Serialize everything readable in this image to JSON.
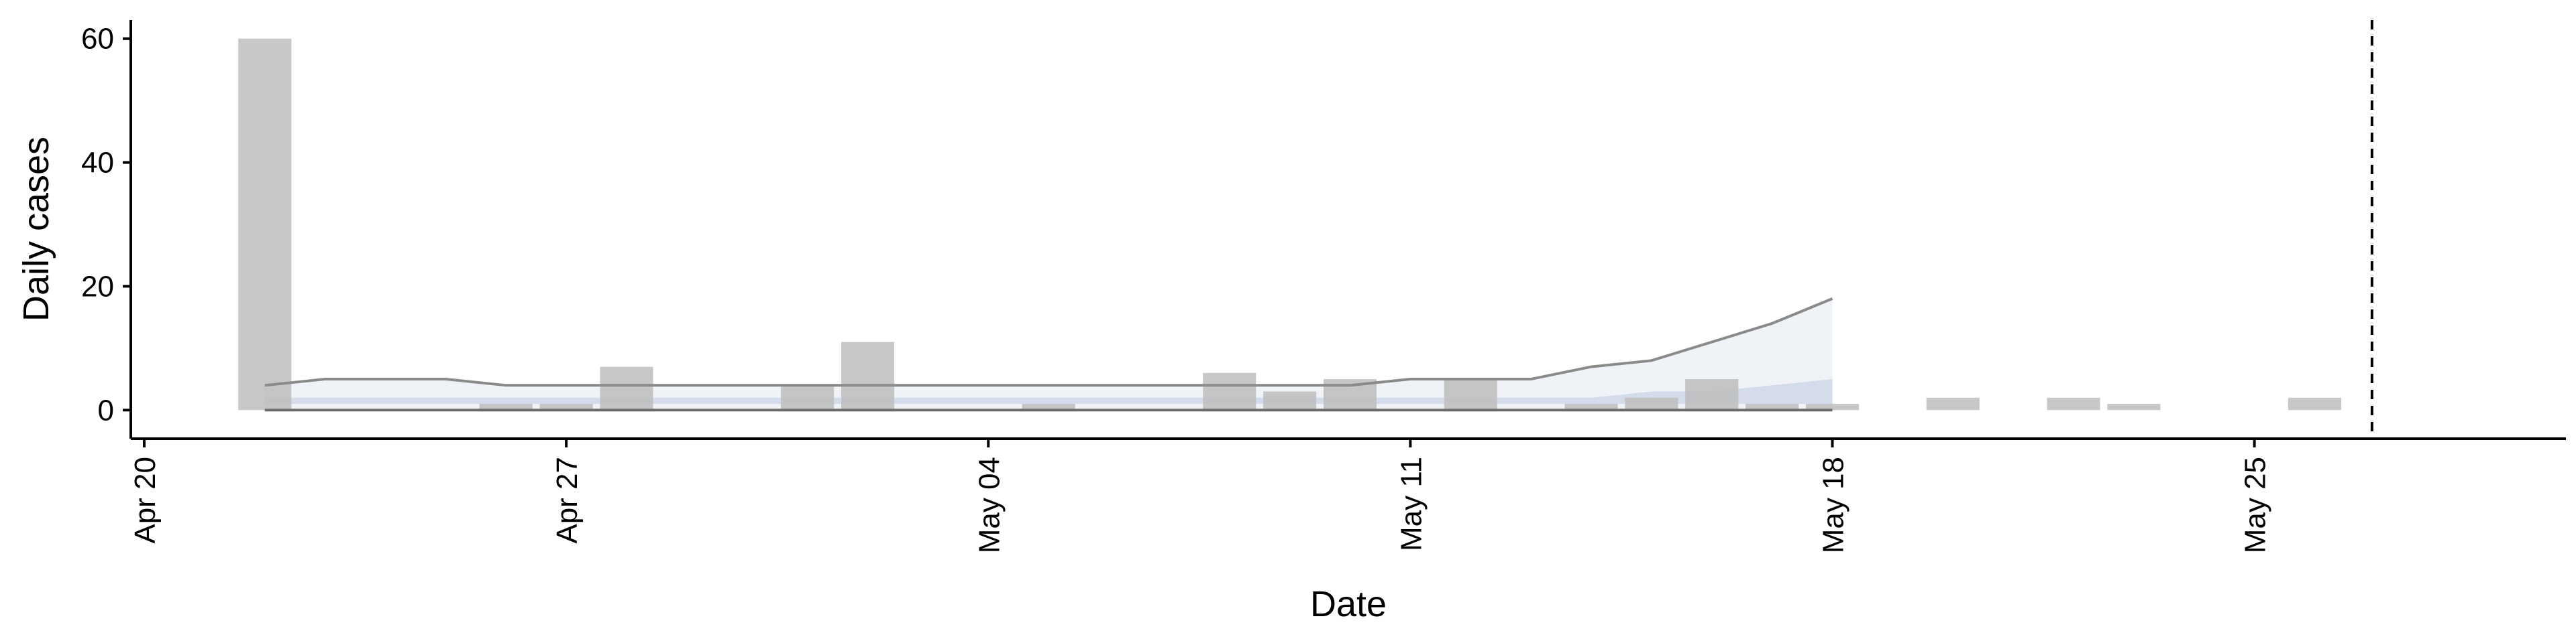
{
  "chart_data": {
    "type": "bar",
    "xlabel": "Date",
    "ylabel": "Daily cases",
    "x_range": [
      "2020-04-20",
      "2020-05-30"
    ],
    "ylim": [
      -3,
      63
    ],
    "y_ticks": [
      0,
      20,
      40,
      60
    ],
    "x_ticks": [
      {
        "date": "2020-04-20",
        "label": "Apr 20"
      },
      {
        "date": "2020-04-27",
        "label": "Apr 27"
      },
      {
        "date": "2020-05-04",
        "label": "May 04"
      },
      {
        "date": "2020-05-11",
        "label": "May 11"
      },
      {
        "date": "2020-05-18",
        "label": "May 18"
      },
      {
        "date": "2020-05-25",
        "label": "May 25"
      }
    ],
    "grid": false,
    "bar_color": "#bdbdbd",
    "bars": [
      {
        "date": "2020-04-22",
        "value": 60
      },
      {
        "date": "2020-04-26",
        "value": 1
      },
      {
        "date": "2020-04-27",
        "value": 1
      },
      {
        "date": "2020-04-28",
        "value": 7
      },
      {
        "date": "2020-05-01",
        "value": 4
      },
      {
        "date": "2020-05-02",
        "value": 11
      },
      {
        "date": "2020-05-05",
        "value": 1
      },
      {
        "date": "2020-05-08",
        "value": 6
      },
      {
        "date": "2020-05-09",
        "value": 3
      },
      {
        "date": "2020-05-10",
        "value": 5
      },
      {
        "date": "2020-05-12",
        "value": 5
      },
      {
        "date": "2020-05-14",
        "value": 1
      },
      {
        "date": "2020-05-15",
        "value": 2
      },
      {
        "date": "2020-05-16",
        "value": 5
      },
      {
        "date": "2020-05-17",
        "value": 1
      },
      {
        "date": "2020-05-18",
        "value": 1
      },
      {
        "date": "2020-05-20",
        "value": 2
      },
      {
        "date": "2020-05-22",
        "value": 2
      },
      {
        "date": "2020-05-23",
        "value": 1
      },
      {
        "date": "2020-05-26",
        "value": 2
      }
    ],
    "estimate_band": {
      "color": "#8fa3c8",
      "dates": [
        "2020-04-22",
        "2020-04-23",
        "2020-04-24",
        "2020-04-25",
        "2020-04-26",
        "2020-04-27",
        "2020-04-28",
        "2020-04-29",
        "2020-04-30",
        "2020-05-01",
        "2020-05-02",
        "2020-05-03",
        "2020-05-04",
        "2020-05-05",
        "2020-05-06",
        "2020-05-07",
        "2020-05-08",
        "2020-05-09",
        "2020-05-10",
        "2020-05-11",
        "2020-05-12",
        "2020-05-13",
        "2020-05-14",
        "2020-05-15",
        "2020-05-16",
        "2020-05-17",
        "2020-05-18"
      ],
      "upper": [
        4,
        5,
        5,
        5,
        4,
        4,
        4,
        4,
        4,
        4,
        4,
        4,
        4,
        4,
        4,
        4,
        4,
        4,
        4,
        5,
        5,
        5,
        7,
        8,
        11,
        14,
        18
      ],
      "inner_upper": [
        2,
        2,
        2,
        2,
        2,
        2,
        2,
        2,
        2,
        2,
        2,
        2,
        2,
        2,
        2,
        2,
        2,
        2,
        2,
        2,
        2,
        2,
        2,
        3,
        3,
        4,
        5
      ],
      "inner_lower": [
        1,
        1,
        1,
        1,
        1,
        1,
        1,
        1,
        1,
        1,
        1,
        1,
        1,
        1,
        1,
        1,
        1,
        1,
        1,
        1,
        1,
        1,
        1,
        1,
        1,
        1,
        1
      ],
      "lower": [
        0,
        0,
        0,
        0,
        0,
        0,
        0,
        0,
        0,
        0,
        0,
        0,
        0,
        0,
        0,
        0,
        0,
        0,
        0,
        0,
        0,
        0,
        0,
        0,
        0,
        0,
        0
      ]
    },
    "vline": {
      "date": "2020-05-26.95",
      "style": "dashed"
    }
  }
}
